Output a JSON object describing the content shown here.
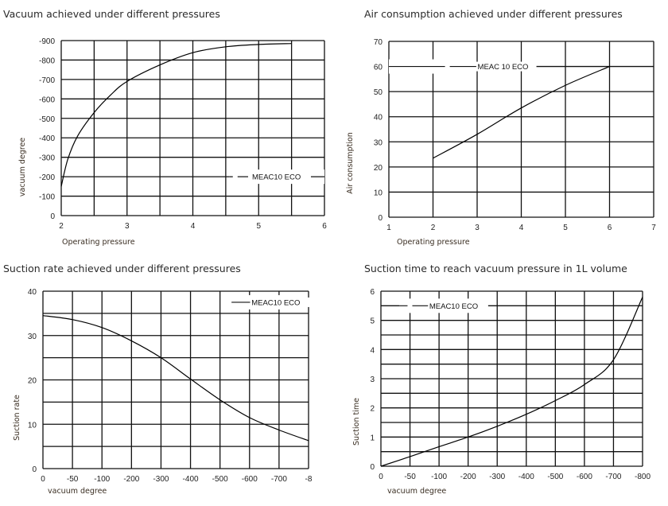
{
  "chart_data": [
    {
      "type": "line",
      "title": "Vacuum achieved under different pressures",
      "xlabel": "Operating pressure",
      "ylabel": "vacuum degree",
      "xlim": [
        2,
        6
      ],
      "ylim": [
        0,
        -900
      ],
      "grid": true,
      "x_ticks": [
        "2",
        "3",
        "4",
        "5",
        "6"
      ],
      "y_ticks": [
        "0",
        "-100",
        "-200",
        "-300",
        "-400",
        "-500",
        "-600",
        "-700",
        "-800",
        "-900"
      ],
      "legend_position": "lower-right",
      "series": [
        {
          "name": "MEAC10 ECO",
          "x": [
            2,
            2.1,
            2.25,
            2.5,
            2.75,
            3,
            3.5,
            4,
            4.5,
            5,
            5.5
          ],
          "y": [
            -150,
            -290,
            -410,
            -530,
            -620,
            -690,
            -775,
            -838,
            -868,
            -880,
            -885
          ]
        }
      ]
    },
    {
      "type": "line",
      "title": "Air consumption achieved under different pressures",
      "xlabel": "Operating pressure",
      "ylabel": "Air consumption",
      "xlim": [
        1,
        7
      ],
      "ylim": [
        0,
        70
      ],
      "grid": true,
      "x_ticks": [
        "1",
        "2",
        "3",
        "4",
        "5",
        "6",
        "7"
      ],
      "y_ticks": [
        "0",
        "10",
        "20",
        "30",
        "40",
        "50",
        "60",
        "70"
      ],
      "legend_position": "top-left",
      "series": [
        {
          "name": "MEAC 10 ECO",
          "x": [
            2,
            3,
            4,
            5,
            6
          ],
          "y": [
            23.5,
            33,
            43.5,
            52.5,
            60
          ]
        }
      ]
    },
    {
      "type": "line",
      "title": "Suction rate achieved under different pressures",
      "xlabel": "vacuum degree",
      "ylabel": "Suction rate",
      "ylim": [
        0,
        40
      ],
      "grid": true,
      "categories": [
        "0",
        "-50",
        "-100",
        "-200",
        "-300",
        "-400",
        "-500",
        "-600",
        "-700",
        "-8"
      ],
      "y_ticks": [
        "0",
        "10",
        "20",
        "30",
        "40"
      ],
      "legend_position": "top-right",
      "series": [
        {
          "name": "MEAC10 ECO",
          "values": [
            34.5,
            33.6,
            31.8,
            28.8,
            25,
            20.2,
            15.5,
            11.5,
            8.7,
            6.3
          ]
        }
      ]
    },
    {
      "type": "line",
      "title": "Suction time to reach vacuum pressure in 1L volume",
      "xlabel": "vacuum degree",
      "ylabel": "Suction time",
      "ylim": [
        0,
        6
      ],
      "grid": true,
      "categories": [
        "0",
        "-50",
        "-100",
        "-200",
        "-300",
        "-400",
        "-500",
        "-600",
        "-700",
        "-800"
      ],
      "y_ticks": [
        "0",
        "1",
        "2",
        "3",
        "4",
        "5",
        "6"
      ],
      "legend_position": "top-left",
      "series": [
        {
          "name": "MEAC10 ECO",
          "values": [
            0,
            0.33,
            0.67,
            1.0,
            1.37,
            1.78,
            2.25,
            2.8,
            3.65,
            5.8
          ]
        }
      ]
    }
  ]
}
